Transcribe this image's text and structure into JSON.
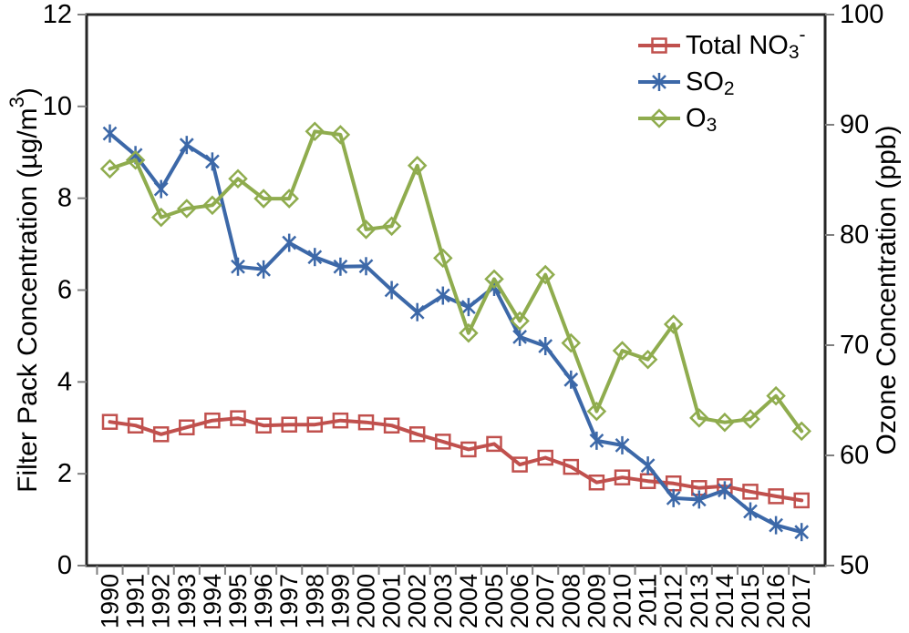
{
  "chart_data": {
    "type": "line",
    "title": "",
    "background": "#ffffff",
    "frame_color": "#262626",
    "tick_color": "#7f7f7f",
    "legend_position": "top-right-inside",
    "grid": false,
    "x_categories": [
      "1990",
      "1991",
      "1992",
      "1993",
      "1994",
      "1995",
      "1996",
      "1997",
      "1998",
      "1999",
      "2000",
      "2001",
      "2002",
      "2003",
      "2004",
      "2005",
      "2006",
      "2007",
      "2008",
      "2009",
      "2010",
      "2011",
      "2012",
      "2013",
      "2014",
      "2015",
      "2016",
      "2017"
    ],
    "left_axis": {
      "title_parts": [
        {
          "t": "Filter Pack Concentration ("
        },
        {
          "t": "µg/m"
        },
        {
          "sup": "3"
        },
        {
          "t": ")"
        }
      ],
      "min": 0,
      "max": 12,
      "tick_values": [
        0,
        2,
        4,
        6,
        8,
        10,
        12
      ],
      "tick_labels": [
        "0",
        "2",
        "4",
        "6",
        "8",
        "10",
        "12"
      ]
    },
    "right_axis": {
      "title_parts": [
        {
          "t": "Ozone Concentration (ppb)"
        }
      ],
      "min": 50,
      "max": 100,
      "tick_values": [
        50,
        60,
        70,
        80,
        90,
        100
      ],
      "tick_labels": [
        "50",
        "60",
        "70",
        "80",
        "90",
        "100"
      ]
    },
    "series": [
      {
        "name": "Total NO3-",
        "label_parts": [
          {
            "t": "Total NO"
          },
          {
            "sub": "3"
          },
          {
            "sup": "-"
          }
        ],
        "axis": "left",
        "color": "#C0504D",
        "marker": "square",
        "values": [
          3.13,
          3.05,
          2.86,
          3.01,
          3.16,
          3.21,
          3.05,
          3.07,
          3.07,
          3.16,
          3.12,
          3.05,
          2.86,
          2.7,
          2.53,
          2.65,
          2.2,
          2.35,
          2.15,
          1.81,
          1.92,
          1.84,
          1.79,
          1.69,
          1.73,
          1.61,
          1.51,
          1.42
        ]
      },
      {
        "name": "SO2",
        "label_parts": [
          {
            "t": "SO"
          },
          {
            "sub": "2"
          }
        ],
        "axis": "left",
        "color": "#3C68A8",
        "marker": "asterisk",
        "values": [
          9.41,
          8.94,
          8.2,
          9.16,
          8.8,
          6.51,
          6.45,
          7.03,
          6.72,
          6.51,
          6.52,
          6.0,
          5.52,
          5.88,
          5.63,
          6.07,
          4.98,
          4.78,
          4.05,
          2.72,
          2.62,
          2.18,
          1.47,
          1.44,
          1.64,
          1.18,
          0.88,
          0.73
        ]
      },
      {
        "name": "O3",
        "label_parts": [
          {
            "t": "O"
          },
          {
            "sub": "3"
          }
        ],
        "axis": "right",
        "color": "#8FAC4E",
        "marker": "diamond",
        "values": [
          86.0,
          86.8,
          81.6,
          82.4,
          82.7,
          85.1,
          83.3,
          83.3,
          89.4,
          89.1,
          80.5,
          80.8,
          86.3,
          77.9,
          71.1,
          76.0,
          72.2,
          76.4,
          70.2,
          64.0,
          69.5,
          68.7,
          71.9,
          63.4,
          63.0,
          63.3,
          65.4,
          62.2
        ]
      }
    ]
  }
}
